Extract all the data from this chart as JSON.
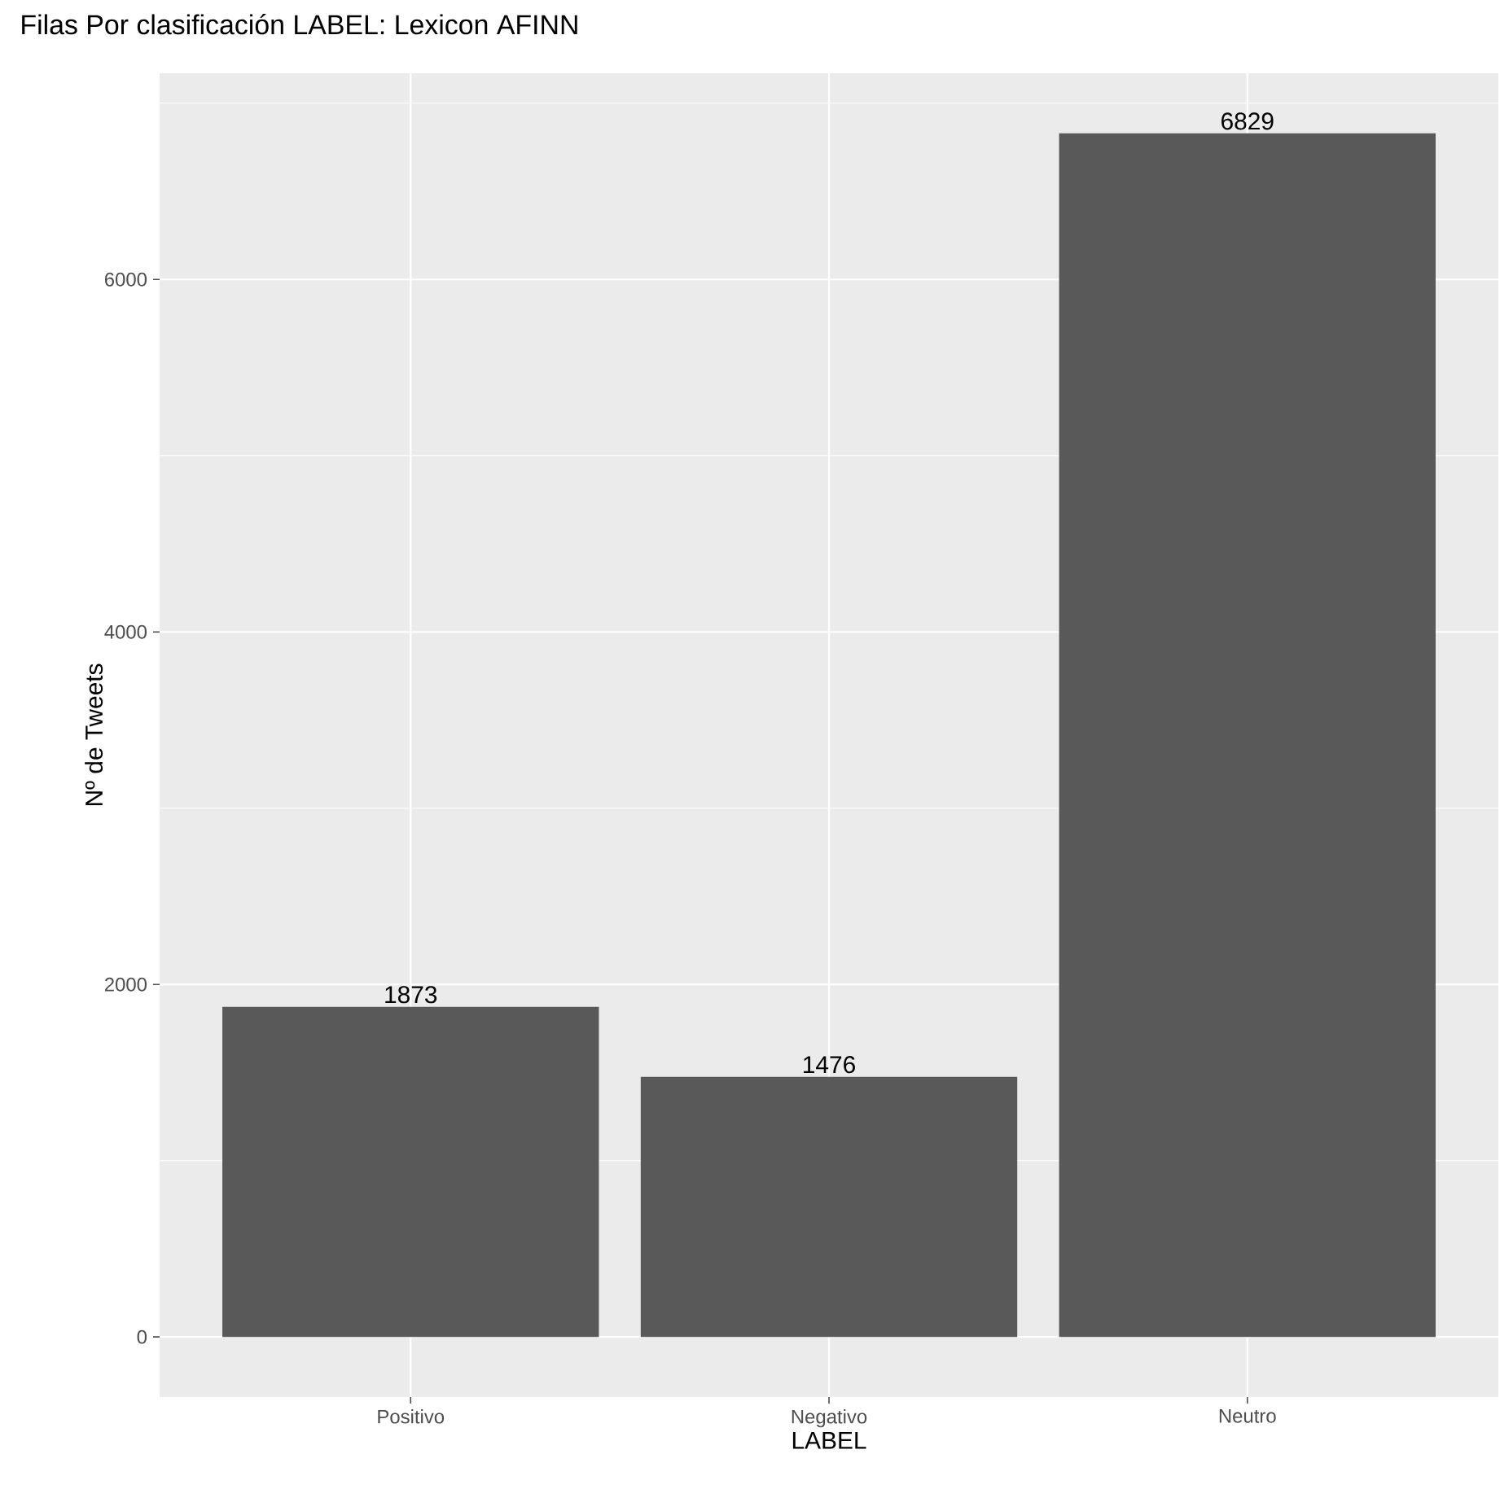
{
  "chart_data": {
    "type": "bar",
    "title": "Filas Por clasificación LABEL: Lexicon AFINN",
    "xlabel": "LABEL",
    "ylabel": "Nº de Tweets",
    "categories": [
      "Positivo",
      "Negativo",
      "Neutro"
    ],
    "values": [
      1873,
      1476,
      6829
    ],
    "color": "#595959",
    "ylim": [
      -341,
      7170
    ],
    "yticks": [
      0,
      2000,
      4000,
      6000
    ],
    "grid": true,
    "data_labels": true
  }
}
